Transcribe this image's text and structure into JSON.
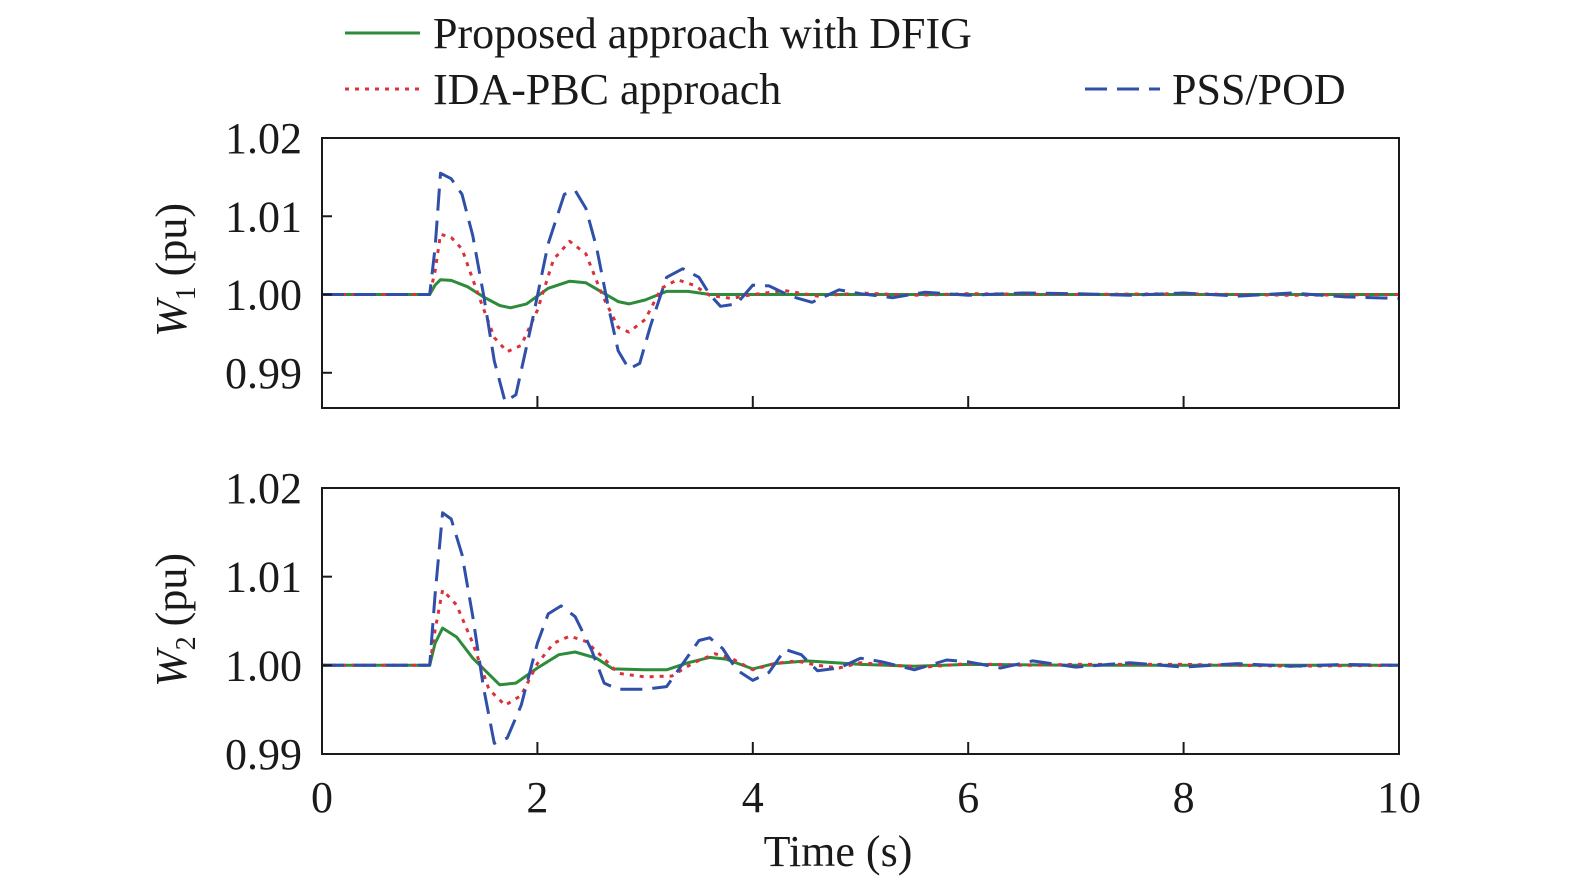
{
  "legend": [
    {
      "label": "Proposed approach with DFIG",
      "color": "#2e8b3a",
      "style": "solid"
    },
    {
      "label": "IDA-PBC approach",
      "color": "#d9323a",
      "style": "dotted"
    },
    {
      "label": "PSS/POD",
      "color": "#2f4fa8",
      "style": "dashed"
    }
  ],
  "chart_data": [
    {
      "type": "line",
      "ylabel_main": "W",
      "ylabel_sub": "1",
      "ylabel_unit": "(pu)",
      "xlim": [
        0,
        10
      ],
      "ylim": [
        0.9855,
        1.02
      ],
      "yticks": [
        0.99,
        1.0,
        1.01,
        1.02
      ],
      "ytick_labels": [
        "0.99",
        "1.00",
        "1.01",
        "1.02"
      ],
      "xticks": [
        0,
        2,
        4,
        6,
        8,
        10
      ],
      "series": [
        {
          "name": "Proposed approach with DFIG",
          "x": [
            0,
            1,
            1.05,
            1.1,
            1.2,
            1.35,
            1.5,
            1.65,
            1.75,
            1.9,
            2.1,
            2.3,
            2.45,
            2.6,
            2.75,
            2.85,
            3.0,
            3.2,
            3.4,
            3.6,
            4.0,
            5,
            6,
            7,
            8,
            9,
            10
          ],
          "y": [
            1.0,
            1.0,
            1.0012,
            1.0019,
            1.0018,
            1.001,
            0.9997,
            0.9986,
            0.9983,
            0.9988,
            1.0008,
            1.0017,
            1.0015,
            1.0003,
            0.9991,
            0.9988,
            0.9993,
            1.0004,
            1.0004,
            1.0,
            1.0,
            1.0,
            1.0,
            1.0,
            1.0,
            1.0,
            1.0
          ]
        },
        {
          "name": "IDA-PBC approach",
          "x": [
            0,
            1,
            1.05,
            1.1,
            1.2,
            1.3,
            1.45,
            1.6,
            1.72,
            1.85,
            2.0,
            2.15,
            2.3,
            2.45,
            2.6,
            2.75,
            2.85,
            3.0,
            3.15,
            3.3,
            3.45,
            3.6,
            3.8,
            4.0,
            4.3,
            4.6,
            5,
            5.5,
            6,
            7,
            8,
            9,
            10
          ],
          "y": [
            1.0,
            1.0,
            1.003,
            1.0077,
            1.0073,
            1.0058,
            1.0,
            0.9945,
            0.9927,
            0.9935,
            0.998,
            1.0045,
            1.0068,
            1.0052,
            1.0,
            0.9958,
            0.9952,
            0.9968,
            1.0008,
            1.0019,
            1.0012,
            0.9999,
            0.9995,
            1.0,
            1.0005,
            0.9998,
            1.0002,
            0.9999,
            1.0001,
            1.0,
            1.0001,
            0.9999,
            1.0
          ]
        },
        {
          "name": "PSS/POD",
          "x": [
            0,
            1,
            1.05,
            1.1,
            1.2,
            1.3,
            1.4,
            1.5,
            1.6,
            1.7,
            1.8,
            1.95,
            2.1,
            2.25,
            2.35,
            2.45,
            2.55,
            2.65,
            2.75,
            2.85,
            2.95,
            3.05,
            3.2,
            3.35,
            3.5,
            3.6,
            3.7,
            3.85,
            4.0,
            4.15,
            4.35,
            4.55,
            4.8,
            5.0,
            5.3,
            5.6,
            6.0,
            6.5,
            7,
            7.5,
            8,
            8.5,
            9,
            9.5,
            10
          ],
          "y": [
            1.0,
            1.0,
            1.006,
            1.0155,
            1.0148,
            1.0128,
            1.0075,
            1.0,
            0.9915,
            0.9863,
            0.9872,
            0.9965,
            1.0065,
            1.0128,
            1.0133,
            1.011,
            1.006,
            0.999,
            0.9928,
            0.9905,
            0.9912,
            0.996,
            1.0022,
            1.0033,
            1.0022,
            1.0,
            0.9985,
            0.9988,
            1.0012,
            1.0011,
            0.9998,
            0.999,
            1.0006,
            1.0001,
            0.9996,
            1.0003,
            0.9999,
            1.0002,
            1.0001,
            0.9999,
            1.0002,
            0.9998,
            1.0002,
            0.9997,
            0.9995
          ]
        }
      ]
    },
    {
      "type": "line",
      "ylabel_main": "W",
      "ylabel_sub": "2",
      "ylabel_unit": "(pu)",
      "xlabel": "Time (s)",
      "xlim": [
        0,
        10
      ],
      "ylim": [
        0.99,
        1.02
      ],
      "yticks": [
        0.99,
        1.0,
        1.01,
        1.02
      ],
      "ytick_labels": [
        "0.99",
        "1.00",
        "1.01",
        "1.02"
      ],
      "xticks": [
        0,
        2,
        4,
        6,
        8,
        10
      ],
      "xtick_labels": [
        "0",
        "2",
        "4",
        "6",
        "8",
        "10"
      ],
      "series": [
        {
          "name": "Proposed approach with DFIG",
          "x": [
            0,
            1,
            1.05,
            1.12,
            1.25,
            1.4,
            1.55,
            1.65,
            1.8,
            2.0,
            2.2,
            2.35,
            2.55,
            2.7,
            3.0,
            3.2,
            3.4,
            3.6,
            3.75,
            4.0,
            4.2,
            4.5,
            5,
            5.5,
            6,
            7,
            8,
            9,
            10
          ],
          "y": [
            1.0,
            1.0,
            1.0025,
            1.0042,
            1.0032,
            1.0008,
            0.999,
            0.9978,
            0.998,
            0.9997,
            1.0012,
            1.0015,
            1.0008,
            0.9996,
            0.9995,
            0.9995,
            1.0003,
            1.0009,
            1.0007,
            0.9996,
            1.0002,
            1.0005,
            1.0001,
            0.9999,
            1.0001,
            1.0,
            1.0,
            1.0,
            1.0
          ]
        },
        {
          "name": "IDA-PBC approach",
          "x": [
            0,
            1,
            1.05,
            1.12,
            1.25,
            1.4,
            1.55,
            1.7,
            1.85,
            2.0,
            2.15,
            2.3,
            2.45,
            2.6,
            2.75,
            3.0,
            3.25,
            3.45,
            3.65,
            3.8,
            4.0,
            4.2,
            4.4,
            4.6,
            4.8,
            5.0,
            5.3,
            5.6,
            6.0,
            6.5,
            7,
            8,
            9,
            10
          ],
          "y": [
            1.0,
            1.0,
            1.004,
            1.0085,
            1.0068,
            1.0025,
            0.9973,
            0.9955,
            0.9966,
            1.0002,
            1.0025,
            1.0033,
            1.0027,
            1.001,
            0.9991,
            0.9987,
            0.9988,
            1.0003,
            1.0013,
            1.0008,
            0.9995,
            1.0002,
            1.0005,
            1.0,
            0.9997,
            1.0003,
            1.0,
            0.9998,
            1.0002,
            1.0,
            1.0001,
            1.0001,
            0.9999,
            1.0
          ]
        },
        {
          "name": "PSS/POD",
          "x": [
            0,
            1,
            1.05,
            1.12,
            1.2,
            1.3,
            1.4,
            1.5,
            1.6,
            1.72,
            1.85,
            2.0,
            2.1,
            2.22,
            2.35,
            2.5,
            2.62,
            2.75,
            3.0,
            3.2,
            3.35,
            3.5,
            3.6,
            3.72,
            3.85,
            4.0,
            4.15,
            4.3,
            4.45,
            4.6,
            4.8,
            5.0,
            5.2,
            5.5,
            5.8,
            6.0,
            6.3,
            6.6,
            7,
            7.5,
            8,
            8.5,
            9,
            9.5,
            10
          ],
          "y": [
            1.0,
            1.0,
            1.008,
            1.0172,
            1.0165,
            1.0125,
            1.0055,
            0.9975,
            0.9912,
            0.9918,
            0.9955,
            1.0025,
            1.0058,
            1.0067,
            1.0055,
            1.0018,
            0.998,
            0.9973,
            0.9973,
            0.9976,
            1.0002,
            1.0028,
            1.0031,
            1.0019,
            0.9995,
            0.9983,
            0.9992,
            1.0018,
            1.0012,
            0.9994,
            0.9997,
            1.0008,
            1.0004,
            0.9995,
            1.0006,
            1.0004,
            0.9997,
            1.0005,
            0.9998,
            1.0003,
            0.9998,
            1.0002,
            0.9999,
            1.0001,
            1.0
          ]
        }
      ]
    }
  ]
}
